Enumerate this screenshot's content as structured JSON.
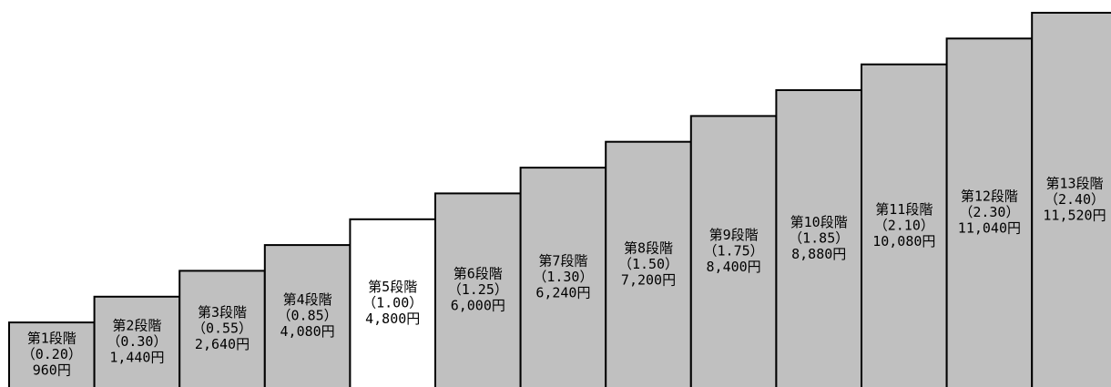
{
  "chart_data": {
    "type": "bar",
    "title": "",
    "xlabel": "",
    "ylabel": "",
    "grid": false,
    "legend": "none",
    "unit": "円",
    "base_value": 4800,
    "ylim": [
      0,
      11520
    ],
    "categories": [
      "第1段階",
      "第2段階",
      "第3段階",
      "第4段階",
      "第5段階",
      "第6段階",
      "第7段階",
      "第8段階",
      "第9段階",
      "第10段階",
      "第11段階",
      "第12段階",
      "第13段階"
    ],
    "ratios": [
      "（0.20）",
      "（0.30）",
      "（0.55）",
      "（0.85）",
      "（1.00）",
      "（1.25）",
      "（1.30）",
      "（1.50）",
      "（1.75）",
      "（1.85）",
      "（2.10）",
      "（2.30）",
      "（2.40）"
    ],
    "amount_labels": [
      "960円",
      "1,440円",
      "2,640円",
      "4,080円",
      "4,800円",
      "6,000円",
      "6,240円",
      "7,200円",
      "8,400円",
      "8,880円",
      "10,080円",
      "11,040円",
      "11,520円"
    ],
    "values": [
      960,
      1440,
      2640,
      4080,
      4800,
      6000,
      6240,
      7200,
      8400,
      8880,
      10080,
      11040,
      11520
    ],
    "bar_height_ratios": [
      0.25,
      0.35,
      0.45,
      0.55,
      0.65,
      0.75,
      0.85,
      0.95,
      1.05,
      1.15,
      1.25,
      1.35,
      1.45
    ],
    "highlight_index": 4,
    "colors": {
      "bar_fill": "#c0c0c0",
      "highlight_fill": "#ffffff",
      "stroke": "#000000",
      "text": "#000000"
    }
  }
}
